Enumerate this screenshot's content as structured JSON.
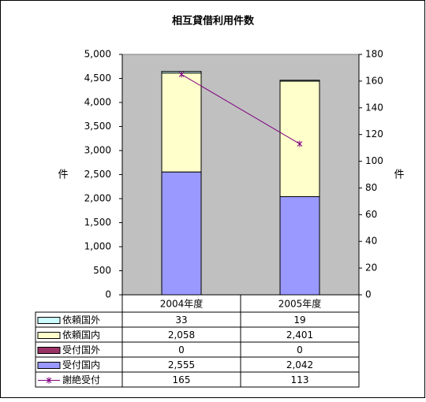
{
  "chart_data": {
    "type": "bar",
    "title": "相互貸借利用件数",
    "categories": [
      "2004年度",
      "2005年度"
    ],
    "ylabel": "件",
    "y2label": "件",
    "ylim": [
      0,
      5000
    ],
    "yticks": [
      0,
      500,
      {
        "value": 1000,
        "label": "1,000"
      },
      {
        "value": 1500,
        "label": "1,500"
      },
      {
        "value": 2000,
        "label": "2,000"
      },
      {
        "value": 2500,
        "label": "2,500"
      },
      {
        "value": 3000,
        "label": "3,000"
      },
      {
        "value": 3500,
        "label": "3,500"
      },
      {
        "value": 4000,
        "label": "4,000"
      },
      {
        "value": 4500,
        "label": "4,500"
      },
      {
        "value": 5000,
        "label": "5,000"
      }
    ],
    "y2lim": [
      0,
      180
    ],
    "y2ticks": [
      0,
      20,
      40,
      60,
      80,
      100,
      120,
      140,
      160,
      180
    ],
    "background": "#c0c0c0",
    "series": [
      {
        "name": "依頼国外",
        "color": "#ccffff",
        "values": [
          33,
          19
        ]
      },
      {
        "name": "依頼国内",
        "color": "#ffffcc",
        "values": [
          2058,
          2401
        ],
        "value_labels": [
          "2,058",
          "2,401"
        ]
      },
      {
        "name": "受付国外",
        "color": "#993366",
        "values": [
          0,
          0
        ]
      },
      {
        "name": "受付国内",
        "color": "#9999ff",
        "values": [
          2555,
          2042
        ],
        "value_labels": [
          "2,555",
          "2,042"
        ]
      },
      {
        "name": "謝絶受付",
        "color": "#800080",
        "values": [
          165,
          113
        ],
        "axis": "y2"
      }
    ]
  }
}
